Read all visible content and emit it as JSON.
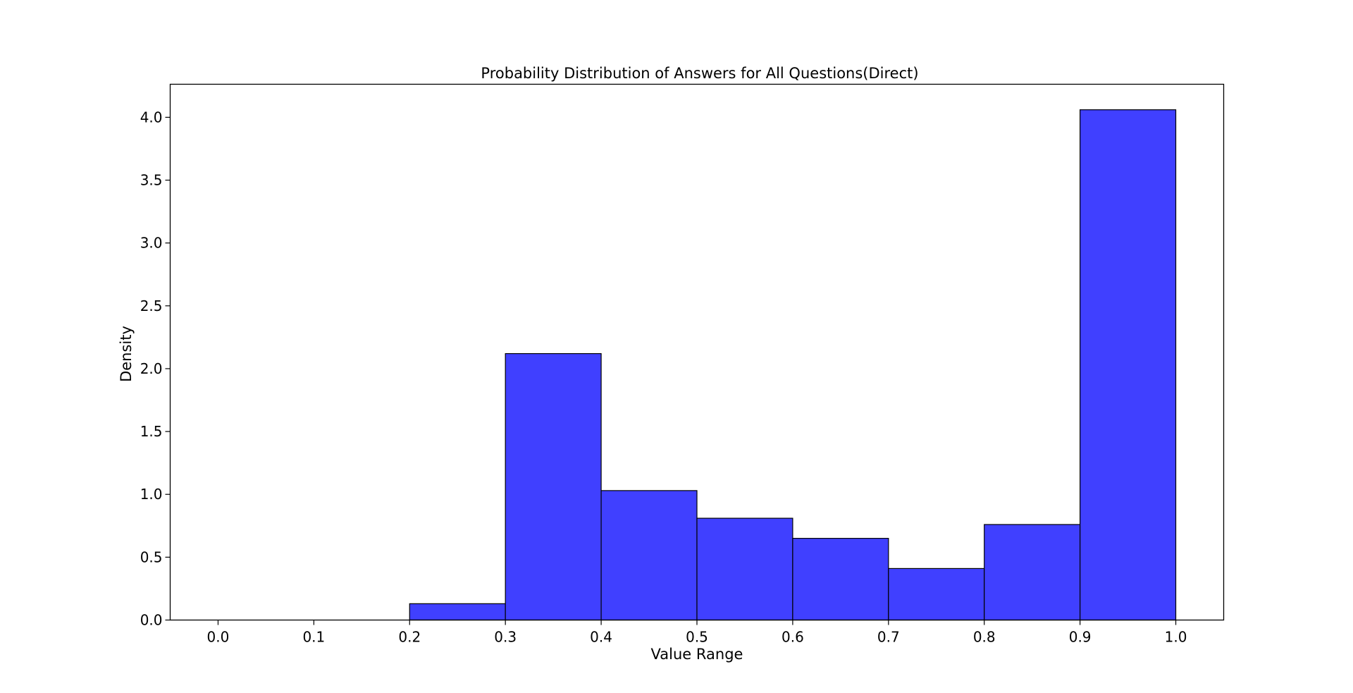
{
  "chart_data": {
    "type": "bar",
    "title": "Probability Distribution of Answers for All Questions(Direct)",
    "xlabel": "Value Range",
    "ylabel": "Density",
    "bins": [
      {
        "start": 0.0,
        "end": 0.1,
        "density": 0.0
      },
      {
        "start": 0.1,
        "end": 0.2,
        "density": 0.0
      },
      {
        "start": 0.2,
        "end": 0.3,
        "density": 0.13
      },
      {
        "start": 0.3,
        "end": 0.4,
        "density": 2.12
      },
      {
        "start": 0.4,
        "end": 0.5,
        "density": 1.03
      },
      {
        "start": 0.5,
        "end": 0.6,
        "density": 0.81
      },
      {
        "start": 0.6,
        "end": 0.7,
        "density": 0.65
      },
      {
        "start": 0.7,
        "end": 0.8,
        "density": 0.41
      },
      {
        "start": 0.8,
        "end": 0.9,
        "density": 0.76
      },
      {
        "start": 0.9,
        "end": 1.0,
        "density": 4.06
      }
    ],
    "xticks": [
      "0.0",
      "0.1",
      "0.2",
      "0.3",
      "0.4",
      "0.5",
      "0.6",
      "0.7",
      "0.8",
      "0.9",
      "1.0"
    ],
    "yticks": [
      "0.0",
      "0.5",
      "1.0",
      "1.5",
      "2.0",
      "2.5",
      "3.0",
      "3.5",
      "4.0"
    ],
    "xlim": [
      -0.05,
      1.05
    ],
    "ylim": [
      0,
      4.263
    ],
    "grid": false,
    "colors": {
      "bar_fill": "#4040ff",
      "bar_edge": "#000000"
    }
  }
}
